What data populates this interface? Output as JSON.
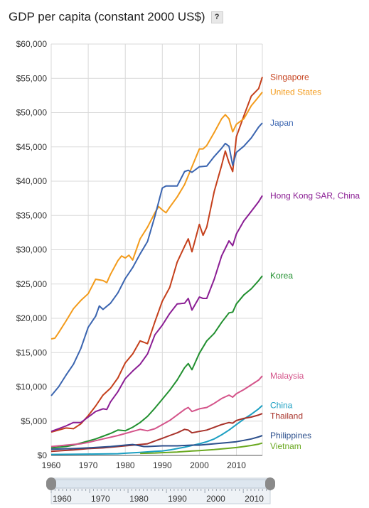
{
  "title": "GDP per capita (constant 2000 US$)",
  "help_label": "?",
  "chart_data": {
    "type": "line",
    "title": "GDP per capita (constant 2000 US$)",
    "xlabel": "",
    "ylabel": "",
    "xlim": [
      1960,
      2017
    ],
    "ylim": [
      0,
      60000
    ],
    "yticks": [
      0,
      5000,
      10000,
      15000,
      20000,
      25000,
      30000,
      35000,
      40000,
      45000,
      50000,
      55000,
      60000
    ],
    "ytick_labels": [
      "$0",
      "$5,000",
      "$10,000",
      "$15,000",
      "$20,000",
      "$25,000",
      "$30,000",
      "$35,000",
      "$40,000",
      "$45,000",
      "$50,000",
      "$55,000",
      "$60,000"
    ],
    "xticks": [
      1960,
      1970,
      1980,
      1990,
      2000,
      2010
    ],
    "xtick_labels": [
      "1960",
      "1970",
      "1980",
      "1990",
      "2000",
      "2010"
    ],
    "grid": true,
    "legend": "right, at line ends",
    "series": [
      {
        "name": "Singapore",
        "color": "#c5401c",
        "x": [
          1960,
          1962,
          1964,
          1966,
          1968,
          1970,
          1972,
          1974,
          1976,
          1978,
          1980,
          1982,
          1984,
          1986,
          1988,
          1990,
          1992,
          1994,
          1996,
          1997,
          1998,
          2000,
          2001,
          2002,
          2004,
          2006,
          2007,
          2008,
          2009,
          2010,
          2012,
          2014,
          2016,
          2017
        ],
        "y": [
          3400,
          3700,
          4000,
          3900,
          4600,
          5800,
          7200,
          8800,
          9800,
          11300,
          13500,
          14800,
          16700,
          16300,
          19500,
          22500,
          24500,
          28200,
          30500,
          31600,
          29700,
          33700,
          32100,
          33300,
          38500,
          42300,
          44400,
          42700,
          41400,
          46500,
          49500,
          52400,
          53500,
          55200
        ]
      },
      {
        "name": "United States",
        "color": "#f39b1b",
        "x": [
          1960,
          1961,
          1962,
          1964,
          1966,
          1968,
          1970,
          1972,
          1974,
          1975,
          1976,
          1978,
          1979,
          1980,
          1981,
          1982,
          1984,
          1986,
          1988,
          1989,
          1990,
          1991,
          1992,
          1994,
          1996,
          1998,
          2000,
          2001,
          2002,
          2004,
          2006,
          2007,
          2008,
          2009,
          2010,
          2012,
          2014,
          2016,
          2017
        ],
        "y": [
          17000,
          17100,
          17900,
          19600,
          21400,
          22600,
          23600,
          25700,
          25500,
          25200,
          26400,
          28400,
          29100,
          28800,
          29200,
          28500,
          31600,
          33300,
          35400,
          36300,
          35800,
          35400,
          36200,
          37700,
          39500,
          42100,
          44700,
          44700,
          45200,
          47100,
          49100,
          49700,
          49100,
          47200,
          48300,
          49100,
          51000,
          52300,
          53000
        ]
      },
      {
        "name": "Japan",
        "color": "#3b65b0",
        "x": [
          1960,
          1962,
          1964,
          1966,
          1968,
          1970,
          1972,
          1973,
          1974,
          1976,
          1978,
          1980,
          1982,
          1984,
          1986,
          1988,
          1990,
          1991,
          1992,
          1994,
          1996,
          1997,
          1998,
          2000,
          2002,
          2004,
          2006,
          2007,
          2008,
          2009,
          2010,
          2012,
          2014,
          2016,
          2017
        ],
        "y": [
          8700,
          10000,
          11700,
          13300,
          15600,
          18700,
          20300,
          21800,
          21300,
          22200,
          23700,
          25800,
          27400,
          29400,
          31200,
          34900,
          39000,
          39300,
          39300,
          39300,
          41400,
          41600,
          41300,
          42100,
          42200,
          43600,
          44800,
          45500,
          45100,
          42300,
          44200,
          45100,
          46300,
          47900,
          48500
        ]
      },
      {
        "name": "Hong Kong SAR, China",
        "color": "#8b1e94",
        "x": [
          1960,
          1962,
          1964,
          1966,
          1968,
          1970,
          1972,
          1974,
          1975,
          1976,
          1978,
          1980,
          1982,
          1984,
          1986,
          1988,
          1990,
          1992,
          1994,
          1996,
          1997,
          1998,
          2000,
          2001,
          2002,
          2004,
          2006,
          2008,
          2009,
          2010,
          2012,
          2014,
          2016,
          2017
        ],
        "y": [
          3500,
          3900,
          4300,
          4800,
          4800,
          5600,
          6400,
          6800,
          6700,
          7800,
          9300,
          11200,
          12300,
          13300,
          14800,
          17600,
          19000,
          20700,
          22100,
          22200,
          22900,
          21200,
          23100,
          22900,
          22900,
          25700,
          29100,
          31300,
          30600,
          32300,
          34200,
          35600,
          37000,
          37900
        ]
      },
      {
        "name": "Korea",
        "color": "#229030",
        "x": [
          1960,
          1962,
          1964,
          1966,
          1968,
          1970,
          1972,
          1974,
          1976,
          1978,
          1980,
          1982,
          1984,
          1986,
          1988,
          1990,
          1992,
          1994,
          1996,
          1997,
          1998,
          2000,
          2002,
          2004,
          2006,
          2008,
          2009,
          2010,
          2012,
          2014,
          2016,
          2017
        ],
        "y": [
          1100,
          1200,
          1300,
          1500,
          1800,
          2100,
          2400,
          2800,
          3200,
          3700,
          3600,
          4100,
          4800,
          5700,
          6900,
          8200,
          9500,
          11000,
          12800,
          13400,
          12500,
          14900,
          16700,
          17800,
          19400,
          20800,
          20900,
          22100,
          23400,
          24300,
          25500,
          26200
        ]
      },
      {
        "name": "Malaysia",
        "color": "#d4548a",
        "x": [
          1960,
          1964,
          1968,
          1970,
          1974,
          1978,
          1980,
          1982,
          1984,
          1985,
          1986,
          1988,
          1990,
          1992,
          1994,
          1996,
          1997,
          1998,
          2000,
          2002,
          2004,
          2006,
          2008,
          2009,
          2010,
          2012,
          2014,
          2016,
          2017
        ],
        "y": [
          1300,
          1500,
          1700,
          1900,
          2400,
          2900,
          3200,
          3500,
          3800,
          3700,
          3600,
          3900,
          4500,
          5100,
          5900,
          6700,
          7000,
          6400,
          6800,
          7000,
          7600,
          8300,
          8800,
          8500,
          9000,
          9600,
          10300,
          11000,
          11600
        ]
      },
      {
        "name": "China",
        "color": "#1b9fc2",
        "x": [
          1960,
          1970,
          1978,
          1980,
          1984,
          1988,
          1990,
          1992,
          1994,
          1996,
          1998,
          2000,
          2002,
          2004,
          2006,
          2008,
          2010,
          2012,
          2014,
          2016,
          2017
        ],
        "y": [
          150,
          200,
          250,
          320,
          450,
          600,
          650,
          800,
          1000,
          1200,
          1450,
          1700,
          2000,
          2400,
          3000,
          3700,
          4500,
          5300,
          6000,
          6800,
          7300
        ]
      },
      {
        "name": "Thailand",
        "color": "#a8322a",
        "x": [
          1960,
          1966,
          1970,
          1974,
          1978,
          1980,
          1984,
          1986,
          1988,
          1990,
          1992,
          1994,
          1996,
          1997,
          1998,
          2000,
          2002,
          2004,
          2006,
          2008,
          2009,
          2010,
          2012,
          2014,
          2016,
          2017
        ],
        "y": [
          600,
          800,
          1000,
          1100,
          1300,
          1400,
          1600,
          1700,
          2100,
          2500,
          2900,
          3300,
          3800,
          3700,
          3300,
          3500,
          3700,
          4100,
          4500,
          4800,
          4700,
          5100,
          5400,
          5600,
          5900,
          6100
        ]
      },
      {
        "name": "Philippines",
        "color": "#2c4f8c",
        "x": [
          1960,
          1966,
          1970,
          1976,
          1980,
          1982,
          1984,
          1985,
          1986,
          1990,
          1994,
          1998,
          2000,
          2004,
          2008,
          2010,
          2012,
          2014,
          2016,
          2017
        ],
        "y": [
          900,
          1000,
          1100,
          1300,
          1500,
          1600,
          1400,
          1300,
          1300,
          1400,
          1400,
          1500,
          1500,
          1700,
          1900,
          2000,
          2200,
          2400,
          2700,
          2900
        ]
      },
      {
        "name": "Vietnam",
        "color": "#6aa820",
        "x": [
          1984,
          1988,
          1990,
          1994,
          1998,
          2000,
          2004,
          2008,
          2010,
          2012,
          2014,
          2016,
          2017
        ],
        "y": [
          300,
          350,
          400,
          500,
          650,
          700,
          850,
          1050,
          1150,
          1300,
          1450,
          1650,
          1800
        ]
      }
    ]
  },
  "slider": {
    "tick_labels": [
      "1960",
      "1970",
      "1980",
      "1990",
      "2000",
      "2010"
    ],
    "range": [
      1960,
      2017
    ]
  }
}
